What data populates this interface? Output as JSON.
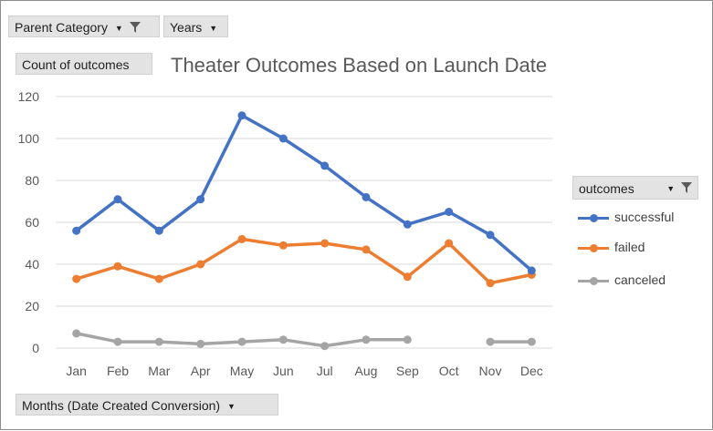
{
  "pivot": {
    "parent_category_label": "Parent Category",
    "years_label": "Years",
    "value_field_label": "Count of outcomes",
    "axis_field_label": "Months (Date Created Conversion)",
    "legend_field_label": "outcomes"
  },
  "colors": {
    "successful": "#4472c4",
    "failed": "#ed7d31",
    "canceled": "#a5a5a5",
    "gridline": "#d9d9d9",
    "axis_text": "#595959"
  },
  "icons": {
    "filter": "filter-icon",
    "dropdown": "dropdown-arrow-icon"
  },
  "chart_data": {
    "type": "line",
    "title": "Theater Outcomes Based on Launch Date",
    "xlabel": "",
    "ylabel": "",
    "categories": [
      "Jan",
      "Feb",
      "Mar",
      "Apr",
      "May",
      "Jun",
      "Jul",
      "Aug",
      "Sep",
      "Oct",
      "Nov",
      "Dec"
    ],
    "ylim": [
      0,
      120
    ],
    "yticks": [
      "0",
      "20",
      "40",
      "60",
      "80",
      "100",
      "120"
    ],
    "grid": true,
    "legend_position": "right",
    "series": [
      {
        "name": "successful",
        "values": [
          56,
          71,
          56,
          71,
          111,
          100,
          87,
          72,
          59,
          65,
          54,
          37
        ]
      },
      {
        "name": "failed",
        "values": [
          33,
          39,
          33,
          40,
          52,
          49,
          50,
          47,
          34,
          50,
          31,
          35
        ]
      },
      {
        "name": "canceled",
        "values": [
          7,
          3,
          3,
          2,
          3,
          4,
          1,
          4,
          4,
          null,
          3,
          3
        ]
      }
    ]
  }
}
